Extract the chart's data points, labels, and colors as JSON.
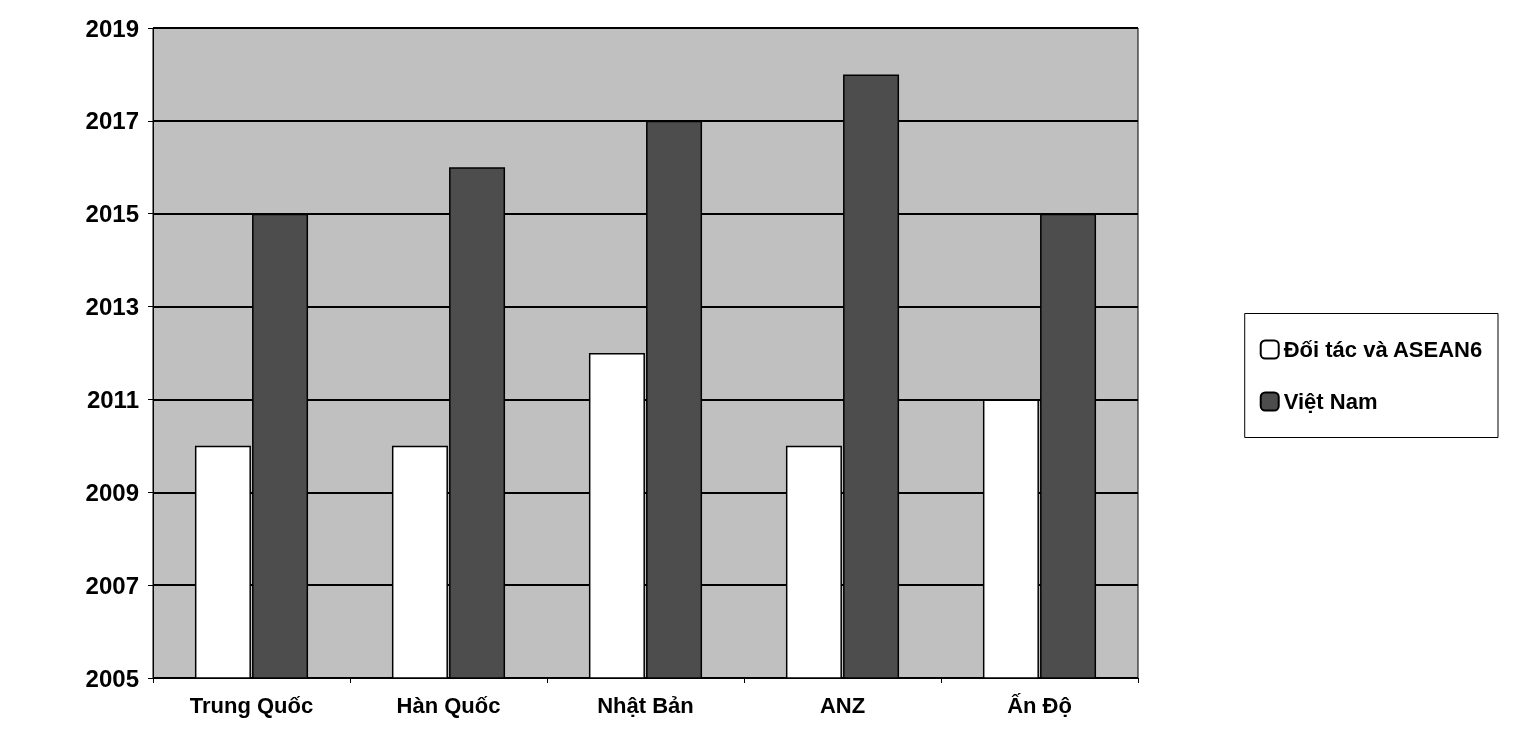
{
  "chart_data": {
    "type": "bar",
    "categories": [
      "Trung Quốc",
      "Hàn Quốc",
      "Nhật Bản",
      "ANZ",
      "Ấn Độ"
    ],
    "series": [
      {
        "name": "Đối tác và ASEAN6",
        "color": "#ffffff",
        "values": [
          2010,
          2010,
          2012,
          2010,
          2011
        ]
      },
      {
        "name": "Việt Nam",
        "color": "#4d4d4d",
        "values": [
          2015,
          2016,
          2017,
          2018,
          2015
        ]
      }
    ],
    "ylim": [
      2005,
      2019
    ],
    "yticks": [
      2005,
      2007,
      2009,
      2011,
      2013,
      2015,
      2017,
      2019
    ],
    "grid": "y",
    "legend": "right"
  }
}
